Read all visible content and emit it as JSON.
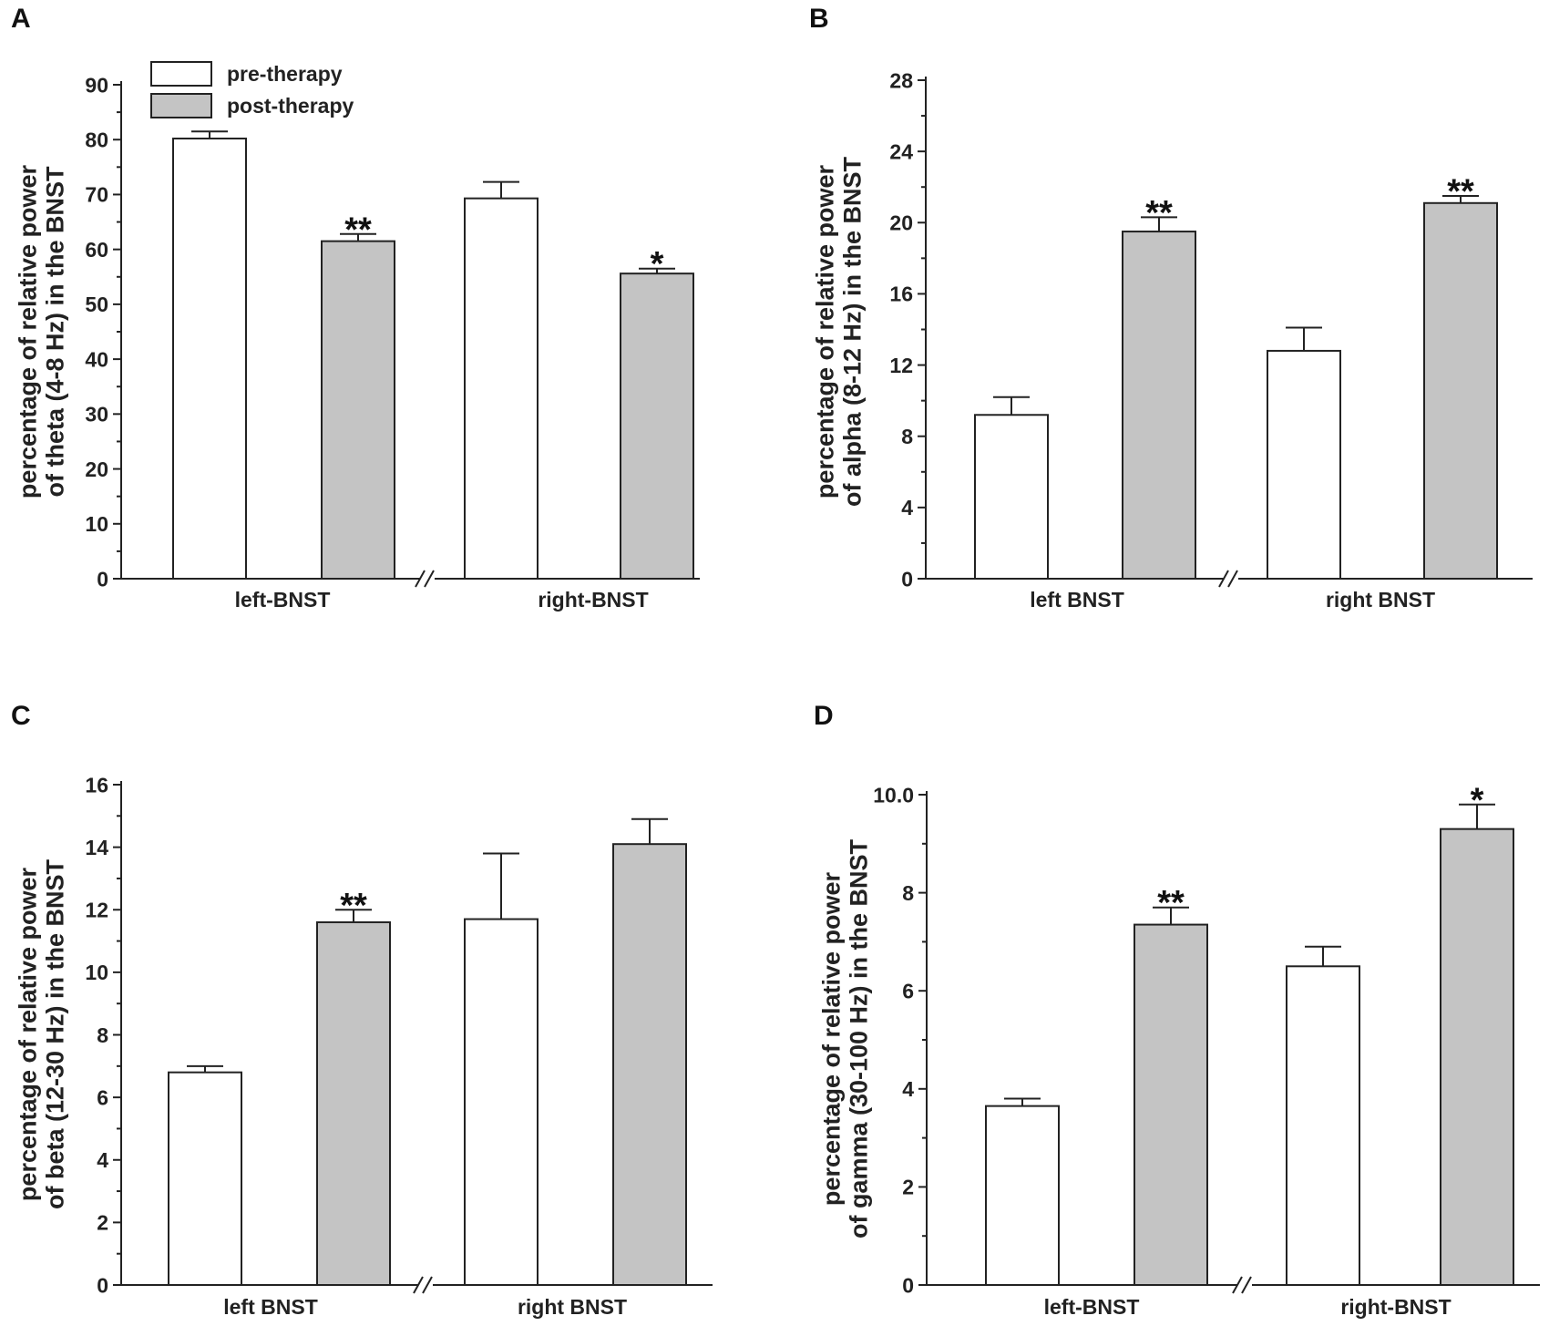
{
  "colors": {
    "pre": "#ffffff",
    "post": "#c4c4c4",
    "ink": "#222222"
  },
  "legend": {
    "pre_label": "pre-therapy",
    "post_label": "post-therapy"
  },
  "chart_data": [
    {
      "panel": "A",
      "type": "bar",
      "ylabel_lines": [
        "percentage of relative power",
        "of theta (4-8 Hz) in the BNST"
      ],
      "ylim": [
        0,
        90
      ],
      "yticks": [
        0,
        10,
        20,
        30,
        40,
        50,
        60,
        70,
        80,
        90
      ],
      "ytick_labels": [
        "0",
        "10",
        "20",
        "30",
        "40",
        "50",
        "60",
        "70",
        "80",
        "90"
      ],
      "categories": [
        "left-BNST",
        "right-BNST"
      ],
      "axis_break": "//",
      "legend": true,
      "series": [
        {
          "name": "pre-therapy",
          "values": [
            80.2,
            69.3
          ],
          "errors": [
            1.3,
            3.0
          ],
          "sig": [
            "",
            ""
          ]
        },
        {
          "name": "post-therapy",
          "values": [
            61.5,
            55.6
          ],
          "errors": [
            1.3,
            0.9
          ],
          "sig": [
            "**",
            "*"
          ]
        }
      ]
    },
    {
      "panel": "B",
      "type": "bar",
      "ylabel_lines": [
        "percentage of relative power",
        "of alpha (8-12 Hz)   in the BNST"
      ],
      "ylim": [
        0,
        28
      ],
      "yticks": [
        0,
        4,
        8,
        12,
        16,
        20,
        24,
        28
      ],
      "ytick_labels": [
        "0",
        "4",
        "8",
        "12",
        "16",
        "20",
        "24",
        "28"
      ],
      "categories": [
        "left BNST",
        "right BNST"
      ],
      "axis_break": "//",
      "legend": false,
      "series": [
        {
          "name": "pre-therapy",
          "values": [
            9.2,
            12.8
          ],
          "errors": [
            1.0,
            1.3
          ],
          "sig": [
            "",
            ""
          ]
        },
        {
          "name": "post-therapy",
          "values": [
            19.5,
            21.1
          ],
          "errors": [
            0.8,
            0.4
          ],
          "sig": [
            "**",
            "**"
          ]
        }
      ]
    },
    {
      "panel": "C",
      "type": "bar",
      "ylabel_lines": [
        "percentage of relative power",
        "of beta (12-30 Hz) in the BNST"
      ],
      "ylim": [
        0,
        16
      ],
      "yticks": [
        0,
        2,
        4,
        6,
        8,
        10,
        12,
        14,
        16
      ],
      "ytick_labels": [
        "0",
        "2",
        "4",
        "6",
        "8",
        "10",
        "12",
        "14",
        "16"
      ],
      "categories": [
        "left BNST",
        "right BNST"
      ],
      "axis_break": "//",
      "legend": false,
      "series": [
        {
          "name": "pre-therapy",
          "values": [
            6.8,
            11.7
          ],
          "errors": [
            0.2,
            2.1
          ],
          "sig": [
            "",
            ""
          ]
        },
        {
          "name": "post-therapy",
          "values": [
            11.6,
            14.1
          ],
          "errors": [
            0.4,
            0.8
          ],
          "sig": [
            "**",
            ""
          ]
        }
      ]
    },
    {
      "panel": "D",
      "type": "bar",
      "ylabel_lines": [
        "percentage of relative power",
        "of gamma (30-100 Hz) in the BNST"
      ],
      "ylim": [
        0,
        10
      ],
      "yticks": [
        0,
        2,
        4,
        6,
        8,
        10
      ],
      "ytick_labels": [
        "0",
        "2",
        "4",
        "6",
        "8",
        "10.0"
      ],
      "categories": [
        "left-BNST",
        "right-BNST"
      ],
      "axis_break": "//",
      "legend": false,
      "series": [
        {
          "name": "pre-therapy",
          "values": [
            3.65,
            6.5
          ],
          "errors": [
            0.15,
            0.4
          ],
          "sig": [
            "",
            ""
          ]
        },
        {
          "name": "post-therapy",
          "values": [
            7.35,
            9.3
          ],
          "errors": [
            0.35,
            0.5
          ],
          "sig": [
            "**",
            "*"
          ]
        }
      ]
    }
  ]
}
